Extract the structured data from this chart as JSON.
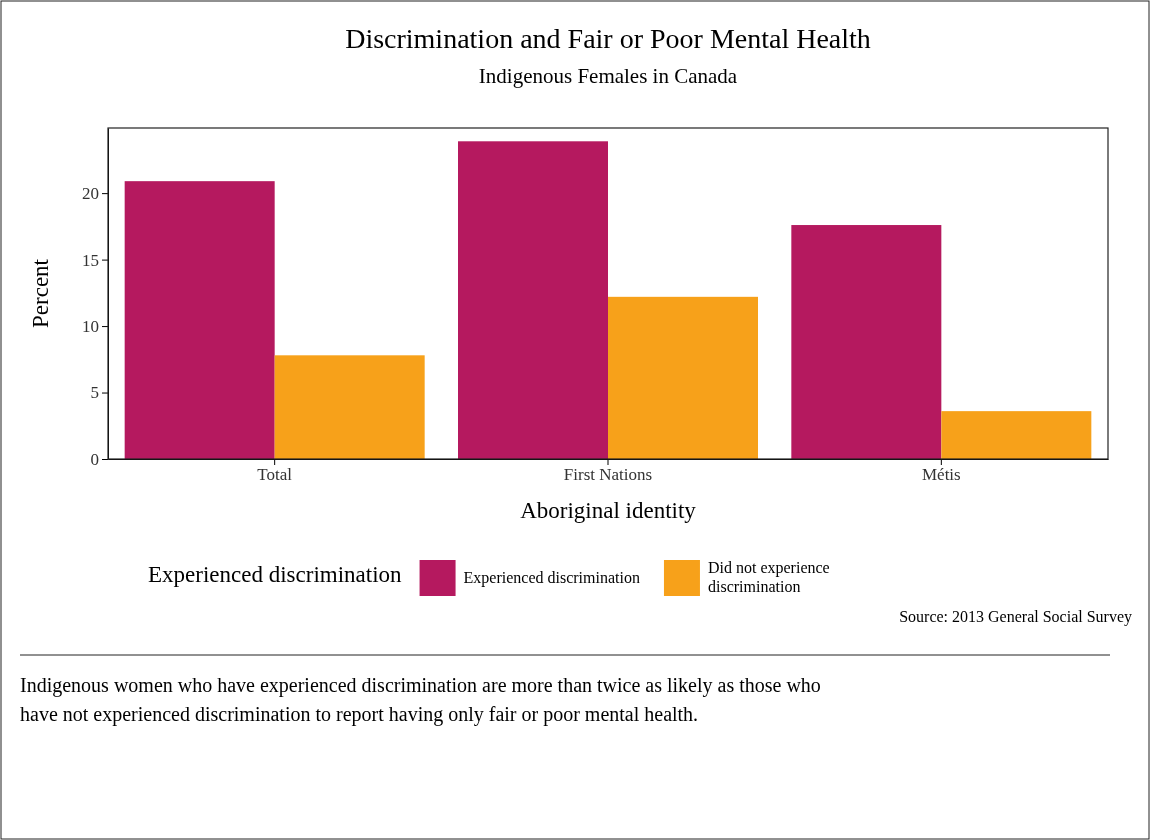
{
  "chart_data": {
    "type": "bar",
    "title": "Discrimination and Fair or Poor Mental Health",
    "subtitle": "Indigenous Females in Canada",
    "xlabel": "Aboriginal identity",
    "ylabel": "Percent",
    "legend_title": "Experienced discrimination",
    "categories": [
      "Total",
      "First Nations",
      "Métis"
    ],
    "series": [
      {
        "name": "Experienced discrimination",
        "color": "#b5195f",
        "values": [
          20.9,
          23.9,
          17.6
        ]
      },
      {
        "name": "Did not experience discrimination",
        "color": "#f7a11a",
        "values": [
          7.8,
          12.2,
          3.6
        ]
      }
    ],
    "ylim": [
      0,
      24.9
    ],
    "yticks": [
      0,
      5,
      10,
      15,
      20
    ],
    "grid": false,
    "legend": "bottom",
    "annotations": [
      "Source: 2013 General Social Survey",
      "Indigenous women who have experienced discrimination are more than twice as likely as those who have not experienced discrimination to report having only fair or poor mental health."
    ]
  }
}
